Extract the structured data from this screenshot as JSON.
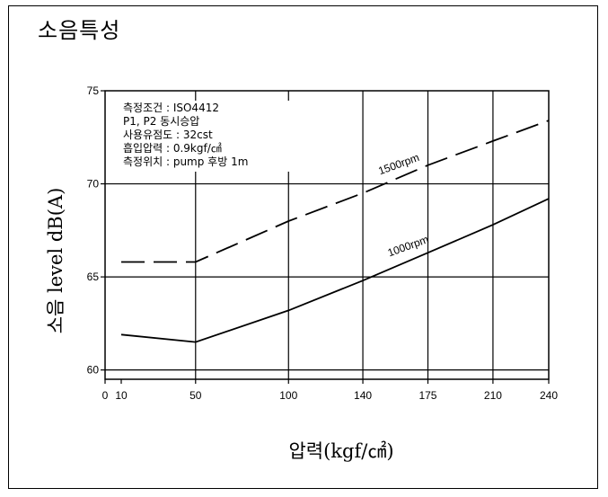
{
  "page": {
    "title": "소음특성"
  },
  "chart_data": {
    "type": "line",
    "xlabel": "압력(kgf/㎠)",
    "ylabel": "소음 level dB(A)",
    "x_ticks": [
      0,
      10,
      50,
      100,
      140,
      175,
      210,
      240
    ],
    "y_ticks": [
      60,
      65,
      70,
      75
    ],
    "ylim": [
      59.5,
      75
    ],
    "grid": true,
    "conditions": [
      "측정조건 : ISO4412",
      "P1, P2 동시승압",
      "사용유점도 : 32cst",
      "흡입압력 : 0.9kgf/㎠",
      "측정위치 : pump 후방 1m"
    ],
    "series": [
      {
        "name": "1500rpm",
        "style": "dashed",
        "color": "#000000",
        "points": [
          [
            10,
            65.8
          ],
          [
            50,
            65.8
          ],
          [
            100,
            68.0
          ],
          [
            140,
            69.5
          ],
          [
            175,
            71.0
          ],
          [
            210,
            72.3
          ],
          [
            240,
            73.4
          ]
        ]
      },
      {
        "name": "1000rpm",
        "style": "solid",
        "color": "#000000",
        "points": [
          [
            10,
            61.9
          ],
          [
            50,
            61.5
          ],
          [
            100,
            63.2
          ],
          [
            140,
            64.8
          ],
          [
            175,
            66.3
          ],
          [
            210,
            67.8
          ],
          [
            240,
            69.2
          ]
        ]
      }
    ]
  }
}
